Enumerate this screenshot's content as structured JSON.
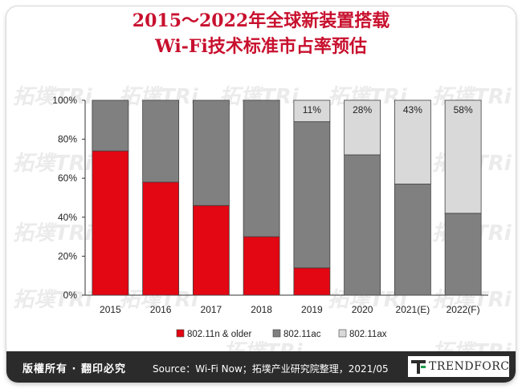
{
  "title": {
    "line1": "2015～2022年全球新装置搭载",
    "line2": "Wi-Fi技术标准市占率预估"
  },
  "watermark_text": "拓墣TRi",
  "footer": {
    "rights": "版權所有 · 翻印必究",
    "source": "Source：Wi-Fi Now；拓墣产业研究院整理，2021/05",
    "brand": "TRENDFORCE"
  },
  "colors": {
    "title": "#c8102e",
    "series_1": "#e30613",
    "series_2": "#808080",
    "series_3": "#d9d9d9",
    "footer_bg": "#2b2b2b"
  },
  "chart_data": {
    "type": "bar",
    "stacked": true,
    "categories": [
      "2015",
      "2016",
      "2017",
      "2018",
      "2019",
      "2020",
      "2021(E)",
      "2022(F)"
    ],
    "series": [
      {
        "name": "802.11n & older",
        "values": [
          74,
          58,
          46,
          30,
          14,
          0,
          0,
          0
        ]
      },
      {
        "name": "802.11ac",
        "values": [
          26,
          42,
          54,
          70,
          75,
          72,
          57,
          42
        ]
      },
      {
        "name": "802.11ax",
        "values": [
          0,
          0,
          0,
          0,
          11,
          28,
          43,
          58
        ]
      }
    ],
    "data_labels": [
      {
        "category": "2019",
        "series": "802.11ax",
        "text": "11%"
      },
      {
        "category": "2020",
        "series": "802.11ax",
        "text": "28%"
      },
      {
        "category": "2021(E)",
        "series": "802.11ax",
        "text": "43%"
      },
      {
        "category": "2022(F)",
        "series": "802.11ax",
        "text": "58%"
      }
    ],
    "yticks": [
      "0%",
      "20%",
      "40%",
      "60%",
      "80%",
      "100%"
    ],
    "ylim": [
      0,
      100
    ],
    "grid": false,
    "legend_position": "bottom"
  }
}
